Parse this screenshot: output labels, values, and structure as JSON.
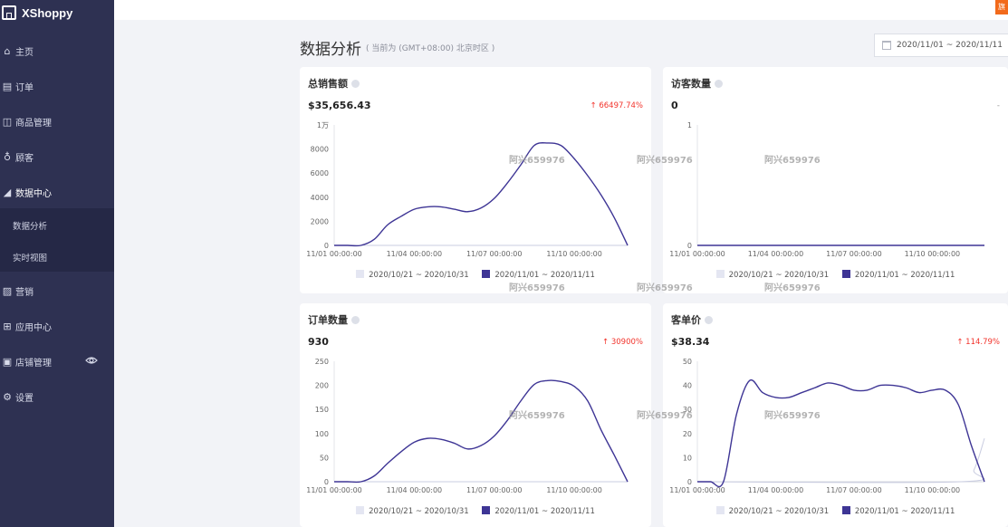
{
  "app": {
    "name": "XShoppy"
  },
  "sidebar": {
    "items": [
      {
        "label": "主页",
        "icon": "home-icon"
      },
      {
        "label": "订单",
        "icon": "order-icon"
      },
      {
        "label": "商品管理",
        "icon": "product-icon"
      },
      {
        "label": "顾客",
        "icon": "customer-icon"
      },
      {
        "label": "数据中心",
        "icon": "data-center-icon"
      },
      {
        "label": "营销",
        "icon": "marketing-icon"
      },
      {
        "label": "应用中心",
        "icon": "app-center-icon"
      },
      {
        "label": "店铺管理",
        "icon": "store-icon"
      },
      {
        "label": "设置",
        "icon": "settings-icon"
      }
    ],
    "sub_items": [
      {
        "label": "数据分析"
      },
      {
        "label": "实时视图"
      }
    ]
  },
  "topbar": {
    "button_label": "旗"
  },
  "header": {
    "title": "数据分析",
    "timezone_note": "( 当前为 (GMT+08:00) 北京时区 )",
    "date_range": "2020/11/01  ~  2020/11/11"
  },
  "watermark": "阿兴659976",
  "legend": {
    "previous": "2020/10/21 ~ 2020/10/31",
    "current": "2020/11/01 ~ 2020/11/11",
    "previous_color": "#e4e6f2",
    "current_color": "#3e3595"
  },
  "cards": {
    "sales": {
      "title": "总销售额",
      "value": "$35,656.43",
      "change": "↑ 66497.74%"
    },
    "visitors": {
      "title": "访客数量",
      "value": "0",
      "change": "-"
    },
    "orders": {
      "title": "订单数量",
      "value": "930",
      "change": "↑ 30900%"
    },
    "aov": {
      "title": "客单价",
      "value": "$38.34",
      "change": "↑ 114.79%"
    }
  },
  "chart_data": [
    {
      "type": "line",
      "title": "总销售额",
      "x_ticks": [
        "11/01 00:00:00",
        "11/04 00:00:00",
        "11/07 00:00:00",
        "11/10 00:00:00"
      ],
      "y_ticks": [
        "0",
        "2000",
        "4000",
        "6000",
        "8000",
        "1万"
      ],
      "ylim": [
        0,
        10000
      ],
      "series": [
        {
          "name": "2020/11/01 ~ 2020/11/11",
          "color": "#3e3595",
          "x": [
            0,
            0.5,
            1,
            1.5,
            2,
            2.5,
            3,
            3.5,
            4,
            4.5,
            5,
            5.5,
            6,
            6.5,
            7,
            7.5,
            8,
            8.5,
            9,
            9.5,
            10,
            10.5,
            11
          ],
          "y": [
            0,
            0,
            0,
            500,
            1700,
            2400,
            3000,
            3200,
            3200,
            3000,
            2800,
            3100,
            3900,
            5200,
            6700,
            8300,
            8500,
            8300,
            7200,
            5800,
            4200,
            2300,
            0
          ]
        },
        {
          "name": "2020/10/21 ~ 2020/10/31",
          "color": "#e4e6f2",
          "x": [
            0,
            11
          ],
          "y": [
            0,
            0
          ]
        }
      ]
    },
    {
      "type": "line",
      "title": "访客数量",
      "x_ticks": [
        "11/01 00:00:00",
        "11/04 00:00:00",
        "11/07 00:00:00",
        "11/10 00:00:00"
      ],
      "y_ticks": [
        "0",
        "1"
      ],
      "ylim": [
        0,
        1
      ],
      "series": [
        {
          "name": "2020/11/01 ~ 2020/11/11",
          "color": "#3e3595",
          "x": [
            0,
            11
          ],
          "y": [
            0,
            0
          ]
        },
        {
          "name": "2020/10/21 ~ 2020/10/31",
          "color": "#e4e6f2",
          "x": [
            0,
            11
          ],
          "y": [
            0,
            0
          ]
        }
      ]
    },
    {
      "type": "line",
      "title": "订单数量",
      "x_ticks": [
        "11/01 00:00:00",
        "11/04 00:00:00",
        "11/07 00:00:00",
        "11/10 00:00:00"
      ],
      "y_ticks": [
        "0",
        "50",
        "100",
        "150",
        "200",
        "250"
      ],
      "ylim": [
        0,
        250
      ],
      "series": [
        {
          "name": "2020/11/01 ~ 2020/11/11",
          "color": "#3e3595",
          "x": [
            0,
            0.5,
            1,
            1.5,
            2,
            2.5,
            3,
            3.5,
            4,
            4.5,
            5,
            5.5,
            6,
            6.5,
            7,
            7.5,
            8,
            8.5,
            9,
            9.5,
            10,
            10.5,
            11
          ],
          "y": [
            0,
            0,
            0,
            12,
            38,
            62,
            82,
            90,
            88,
            80,
            68,
            75,
            95,
            128,
            168,
            202,
            210,
            208,
            198,
            168,
            108,
            55,
            0
          ]
        },
        {
          "name": "2020/10/21 ~ 2020/10/31",
          "color": "#e4e6f2",
          "x": [
            0,
            11
          ],
          "y": [
            0,
            0
          ]
        }
      ]
    },
    {
      "type": "line",
      "title": "客单价",
      "x_ticks": [
        "11/01 00:00:00",
        "11/04 00:00:00",
        "11/07 00:00:00",
        "11/10 00:00:00"
      ],
      "y_ticks": [
        "0",
        "10",
        "20",
        "30",
        "40",
        "50"
      ],
      "ylim": [
        0,
        50
      ],
      "series": [
        {
          "name": "2020/11/01 ~ 2020/11/11",
          "color": "#3e3595",
          "x": [
            0,
            0.5,
            1,
            1.5,
            2,
            2.5,
            3,
            3.5,
            4,
            4.5,
            5,
            5.5,
            6,
            6.5,
            7,
            7.5,
            8,
            8.5,
            9,
            9.5,
            10,
            10.5,
            11
          ],
          "y": [
            0,
            0,
            0,
            28,
            42,
            37,
            35,
            35,
            37,
            39,
            41,
            40,
            38,
            38,
            40,
            40,
            39,
            37,
            38,
            38,
            32,
            15,
            0
          ]
        },
        {
          "name": "2020/10/21 ~ 2020/10/31",
          "color": "#e4e6f2",
          "x": [
            0,
            10.1,
            10.6,
            11
          ],
          "y": [
            0,
            0,
            5,
            18
          ]
        }
      ]
    }
  ]
}
